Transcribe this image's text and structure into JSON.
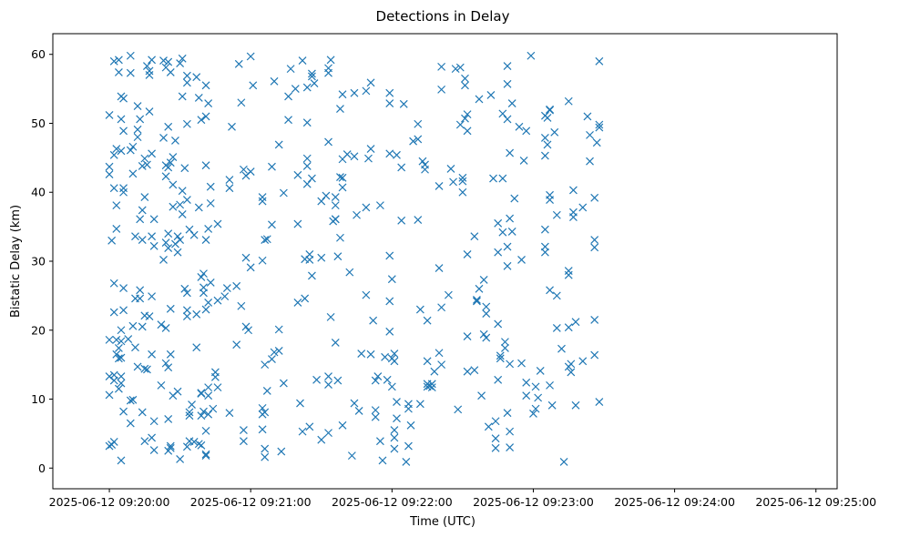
{
  "chart_data": {
    "type": "scatter",
    "title": "Detections in Delay",
    "xlabel": "Time (UTC)",
    "ylabel": "Bistatic Delay (km)",
    "x_unit": "time",
    "x_ticks": [
      "2025-06-12 09:20:00",
      "2025-06-12 09:21:00",
      "2025-06-12 09:22:00",
      "2025-06-12 09:23:00",
      "2025-06-12 09:24:00",
      "2025-06-12 09:25:00"
    ],
    "y_ticks": [
      0,
      10,
      20,
      30,
      40,
      50,
      60
    ],
    "xlim": [
      "2025-06-12 09:19:36",
      "2025-06-12 09:25:09"
    ],
    "ylim": [
      -3,
      63
    ],
    "grid": false,
    "marker": "x",
    "color": "#1f77b4",
    "points_y_by_second": [
      [
        51.2,
        42.6,
        43.7,
        13.3,
        10.6,
        18.6,
        3.2
      ],
      [
        33.0,
        3.4
      ],
      [
        22.6,
        13.5,
        12.7,
        59.0,
        45.4,
        40.6,
        26.8,
        3.8
      ],
      [
        38.1,
        18.6,
        16.5,
        34.7,
        46.3
      ],
      [
        59.2,
        57.4,
        11.5,
        17.4,
        15.9
      ],
      [
        53.9,
        50.6,
        46.0,
        18.4,
        16.0,
        20.0,
        13.3,
        12.3,
        1.1
      ],
      [
        53.6,
        40.6,
        48.9,
        40.0,
        26.1,
        22.9,
        8.2
      ],
      [],
      [
        18.7
      ],
      [
        57.3,
        59.8,
        46.1,
        6.5,
        9.8
      ],
      [
        46.6,
        42.7,
        20.6,
        9.9
      ],
      [
        33.6,
        24.6,
        17.5
      ],
      [
        48.0,
        49.1,
        52.5,
        14.7
      ],
      [
        50.6,
        36.1,
        24.6,
        25.8
      ],
      [
        37.4,
        33.1,
        43.8,
        20.5,
        8.1
      ],
      [
        44.9,
        39.3,
        22.1,
        14.4,
        3.9
      ],
      [
        58.3,
        44.0,
        14.3
      ],
      [
        51.7,
        57.6,
        57.0,
        22.0
      ],
      [
        33.6,
        24.9,
        16.5,
        4.4,
        45.6,
        59.2
      ],
      [
        32.2,
        36.1,
        6.8,
        2.6
      ],
      [],
      [],
      [
        20.8,
        12.0
      ],
      [
        59.1,
        47.9,
        30.2
      ],
      [
        58.1,
        43.9,
        42.3,
        32.7,
        15.2,
        20.3
      ],
      [
        58.9,
        49.5,
        43.6,
        34.0,
        31.9,
        14.6,
        7.1,
        2.5
      ],
      [
        57.4,
        23.1,
        44.3,
        3.2,
        2.9,
        16.5
      ],
      [
        45.1,
        37.9,
        41.1,
        10.5
      ],
      [
        47.5,
        32.5
      ],
      [
        33.6,
        31.3,
        11.1
      ],
      [
        58.7,
        38.2,
        1.3,
        33.1
      ],
      [
        59.4,
        53.9,
        40.2,
        36.8
      ],
      [
        43.5,
        26.0
      ],
      [
        55.9,
        56.9,
        49.9,
        25.4,
        22.9,
        22.0,
        3.1,
        38.9
      ],
      [
        34.6,
        8.1,
        7.6,
        3.9
      ],
      [
        9.2
      ],
      [
        33.8,
        3.8
      ],
      [
        56.7,
        22.3,
        17.5
      ],
      [
        53.7,
        37.8,
        3.5
      ],
      [
        50.5,
        27.7,
        10.9,
        10.8,
        7.6,
        3.3
      ],
      [
        28.2,
        25.4,
        26.2,
        8.2
      ],
      [
        51.0,
        43.9,
        33.1,
        23.0,
        5.4,
        2.0,
        1.8,
        55.5
      ],
      [
        52.9,
        34.7,
        24.0,
        11.7,
        10.5,
        7.8
      ],
      [
        40.8,
        38.4,
        26.9
      ],
      [
        8.6
      ],
      [
        13.9,
        13.2
      ],
      [
        35.4,
        24.3,
        11.7
      ],
      [],
      [],
      [
        24.9
      ],
      [
        26.1
      ],
      [
        41.8,
        40.6,
        8.0
      ],
      [
        49.5
      ],
      [],
      [
        26.4,
        17.9
      ],
      [
        58.6
      ],
      [
        53.0,
        23.5
      ],
      [
        43.3,
        5.5,
        3.9
      ],
      [
        30.5,
        20.5,
        42.4
      ],
      [
        20.0
      ],
      [
        29.1,
        43.0,
        59.7
      ],
      [
        55.5
      ],
      [],
      [],
      [],
      [
        38.7,
        39.3,
        8.7,
        7.8,
        5.6,
        30.1
      ],
      [
        33.1,
        15.0,
        1.6,
        8.1,
        2.8
      ],
      [
        33.2,
        11.2
      ],
      [],
      [
        43.7,
        35.3,
        15.8
      ],
      [
        56.1,
        16.8
      ],
      [],
      [
        46.9,
        20.1,
        17.0
      ],
      [
        2.4
      ],
      [
        12.3,
        39.9
      ],
      [],
      [
        53.9,
        50.5
      ],
      [
        57.9
      ],
      [],
      [
        55.0
      ],
      [
        35.4,
        42.5,
        24.0
      ],
      [
        9.4
      ],
      [
        59.1,
        5.3
      ],
      [
        24.6,
        30.3
      ],
      [
        43.8,
        50.1,
        44.9,
        41.2,
        55.2
      ],
      [
        6.0,
        31.0,
        30.2
      ],
      [
        42.0,
        27.9,
        56.8,
        57.2
      ],
      [
        55.8
      ],
      [
        12.8
      ],
      [],
      [
        38.7,
        30.5,
        4.1
      ],
      [],
      [
        39.5
      ],
      [
        57.3,
        47.3,
        58.0,
        13.3,
        12.1,
        5.1
      ],
      [
        59.2,
        21.9
      ],
      [
        35.8
      ],
      [
        36.1,
        39.3,
        38.1,
        36.1,
        18.2
      ],
      [
        30.7,
        12.7
      ],
      [
        33.4,
        52.1,
        42.2
      ],
      [
        44.8,
        40.7,
        54.2,
        42.1,
        6.2
      ],
      [],
      [
        45.5
      ],
      [
        28.4
      ],
      [
        1.8
      ],
      [
        45.2,
        54.4,
        9.4
      ],
      [
        36.7
      ],
      [
        8.3
      ],
      [
        16.6
      ],
      [],
      [
        54.7,
        37.8,
        25.1
      ],
      [
        44.9
      ],
      [
        46.3,
        55.9,
        16.5
      ],
      [
        21.4
      ],
      [
        12.7,
        8.4,
        7.4
      ],
      [
        13.3
      ],
      [
        3.9,
        38.1
      ],
      [
        1.1
      ],
      [
        16.1
      ],
      [
        12.8
      ],
      [
        30.8,
        24.2,
        19.8,
        52.9,
        54.4,
        45.6
      ],
      [
        27.4,
        15.9,
        11.8
      ],
      [
        16.6,
        2.8,
        15.5,
        5.5,
        4.4
      ],
      [
        7.2,
        9.6,
        45.4
      ],
      [],
      [
        43.6,
        35.9
      ],
      [
        52.8
      ],
      [
        0.9
      ],
      [
        8.6,
        3.2,
        9.3
      ],
      [
        6.2
      ],
      [
        47.4
      ],
      [],
      [
        47.7,
        36.0,
        49.9
      ],
      [
        23.0,
        9.3
      ],
      [
        44.5
      ],
      [
        44.0,
        43.3
      ],
      [
        12.2,
        15.5,
        21.4,
        11.8
      ],
      [
        11.9
      ],
      [
        11.7,
        12.2
      ],
      [
        14.0
      ],
      [],
      [
        40.9,
        29.0,
        16.7
      ],
      [
        58.2,
        15.0,
        23.3,
        54.9
      ],
      [],
      [],
      [
        25.1
      ],
      [
        43.4
      ],
      [
        41.5
      ],
      [
        57.9
      ],
      [
        8.5
      ],
      [
        58.1,
        49.8
      ],
      [
        40.0,
        41.6,
        42.1
      ],
      [
        55.5,
        56.5,
        50.7
      ],
      [
        31.0,
        19.1,
        48.9,
        51.3,
        14.0
      ],
      [],
      [],
      [
        33.6,
        14.2
      ],
      [
        24.4,
        24.2
      ],
      [
        53.5,
        26.0
      ],
      [
        10.5
      ],
      [
        19.4,
        27.3
      ],
      [
        18.9,
        22.4,
        23.4
      ],
      [
        6.0
      ],
      [
        54.1
      ],
      [
        42.0
      ],
      [
        2.9,
        4.3,
        6.8
      ],
      [
        35.5,
        12.8,
        31.3,
        20.9
      ],
      [
        15.9,
        16.3
      ],
      [
        51.4,
        42.0,
        34.2
      ],
      [
        17.4,
        18.3
      ],
      [
        8.0,
        58.3,
        55.7,
        50.6,
        32.1,
        29.3
      ],
      [
        45.7,
        36.2,
        15.1,
        5.3,
        3.0
      ],
      [
        52.9,
        34.3
      ],
      [
        39.1
      ],
      [],
      [
        49.5
      ],
      [
        15.2,
        30.2
      ],
      [
        44.6
      ],
      [
        48.9,
        12.4,
        10.5
      ],
      [],
      [
        59.8
      ],
      [
        7.9
      ],
      [
        8.6,
        11.8
      ],
      [
        10.2
      ],
      [
        14.1
      ],
      [],
      [
        51.1,
        47.9,
        45.3,
        34.6,
        32.1,
        31.3
      ],
      [
        46.9,
        50.8
      ],
      [
        39.6,
        38.9,
        25.8,
        12.0,
        52.0,
        51.9
      ],
      [
        9.1
      ],
      [
        48.7
      ],
      [
        36.7,
        25.0,
        20.3
      ],
      [],
      [
        17.3
      ],
      [
        0.9
      ],
      [],
      [
        53.2,
        28.0,
        28.6,
        20.4,
        14.7
      ],
      [
        15.1,
        13.9
      ],
      [
        40.3,
        36.4,
        37.1
      ],
      [
        9.1,
        21.2
      ],
      [],
      [],
      [
        37.8,
        15.5
      ],
      [],
      [
        51.0
      ],
      [
        44.5,
        48.3
      ],
      [],
      [
        39.2,
        33.1,
        16.4,
        21.5,
        32.0
      ],
      [
        47.2
      ],
      [
        49.8,
        49.4,
        59.0,
        9.6
      ]
    ]
  }
}
